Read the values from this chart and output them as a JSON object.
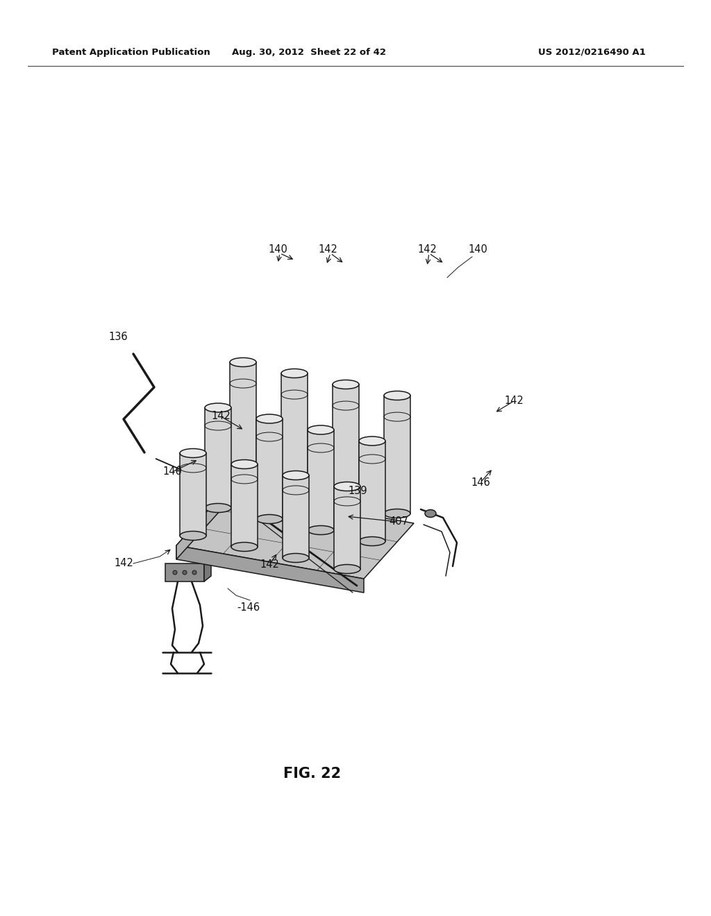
{
  "bg_color": "#ffffff",
  "line_color": "#1a1a1a",
  "header_left": "Patent Application Publication",
  "header_mid": "Aug. 30, 2012  Sheet 22 of 42",
  "header_right": "US 2012/0216490 A1",
  "fig_label": "FIG. 22",
  "lw_main": 1.1,
  "lw_thick": 1.8,
  "lw_thin": 0.7,
  "cylinder_fill_side": "#d4d4d4",
  "cylinder_fill_top": "#e8e8e8",
  "cylinder_fill_bot": "#c0c0c0",
  "platform_fill": "#c4c4c4",
  "platform_dark": "#a0a0a0",
  "platform_mid": "#b2b2b2"
}
